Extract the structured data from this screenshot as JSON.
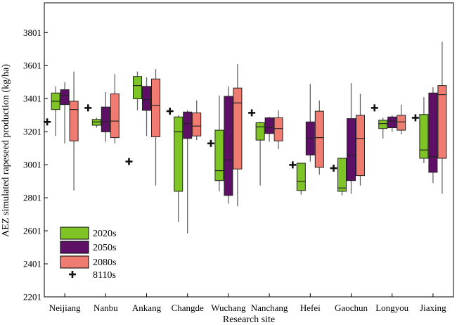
{
  "chart_data": {
    "type": "box",
    "xlabel": "Research site",
    "ylabel": "AEZ simulated rapeseed production (kg/ha)",
    "ylim": [
      2201,
      3981
    ],
    "yticks": [
      2201,
      2401,
      2601,
      2801,
      3001,
      3201,
      3401,
      3601,
      3801
    ],
    "grid": false,
    "legend_position": "bottom-left",
    "categories": [
      "Neijiang",
      "Nanbu",
      "Ankang",
      "Changde",
      "Wuchang",
      "Nanchang",
      "Hefei",
      "Gaochun",
      "Longyou",
      "Jiaxing"
    ],
    "series": [
      {
        "name": "2020s",
        "color": "#7dc424",
        "boxes": [
          {
            "min": 3175,
            "q1": 3335,
            "median": 3385,
            "q3": 3435,
            "max": 3475
          },
          {
            "min": 3225,
            "q1": 3240,
            "median": 3260,
            "q3": 3275,
            "max": 3285
          },
          {
            "min": 3330,
            "q1": 3400,
            "median": 3480,
            "q3": 3535,
            "max": 3565
          },
          {
            "min": 2655,
            "q1": 2840,
            "median": 3200,
            "q3": 3290,
            "max": 3300
          },
          {
            "min": 2840,
            "q1": 2905,
            "median": 2965,
            "q3": 3210,
            "max": 3420
          },
          {
            "min": 2875,
            "q1": 3150,
            "median": 3230,
            "q3": 3255,
            "max": 3260
          },
          {
            "min": 2820,
            "q1": 2845,
            "median": 2900,
            "q3": 3010,
            "max": 3010
          },
          {
            "min": 2815,
            "q1": 2840,
            "median": 2860,
            "q3": 3040,
            "max": 3040
          },
          {
            "min": 3160,
            "q1": 3220,
            "median": 3250,
            "q3": 3270,
            "max": 3285
          },
          {
            "min": 3010,
            "q1": 3040,
            "median": 3090,
            "q3": 3305,
            "max": 3410
          }
        ]
      },
      {
        "name": "2050s",
        "color": "#5e0f66",
        "boxes": [
          {
            "min": 3130,
            "q1": 3365,
            "median": 3420,
            "q3": 3455,
            "max": 3500
          },
          {
            "min": 3140,
            "q1": 3200,
            "median": 3260,
            "q3": 3350,
            "max": 3440
          },
          {
            "min": 3175,
            "q1": 3330,
            "median": 3395,
            "q3": 3475,
            "max": 3530
          },
          {
            "min": 2585,
            "q1": 3160,
            "median": 3250,
            "q3": 3320,
            "max": 3330
          },
          {
            "min": 2765,
            "q1": 2815,
            "median": 3030,
            "q3": 3415,
            "max": 3475
          },
          {
            "min": 3140,
            "q1": 3190,
            "median": 3225,
            "q3": 3285,
            "max": 3290
          },
          {
            "min": 3020,
            "q1": 3060,
            "median": 3160,
            "q3": 3260,
            "max": 3490
          },
          {
            "min": 2825,
            "q1": 2905,
            "median": 3060,
            "q3": 3280,
            "max": 3495
          },
          {
            "min": 3200,
            "q1": 3225,
            "median": 3265,
            "q3": 3290,
            "max": 3300
          },
          {
            "min": 2890,
            "q1": 2955,
            "median": 3050,
            "q3": 3435,
            "max": 3470
          }
        ]
      },
      {
        "name": "2080s",
        "color": "#f07b70",
        "boxes": [
          {
            "min": 2845,
            "q1": 3145,
            "median": 3335,
            "q3": 3385,
            "max": 3565
          },
          {
            "min": 3130,
            "q1": 3165,
            "median": 3265,
            "q3": 3430,
            "max": 3550
          },
          {
            "min": 2875,
            "q1": 3170,
            "median": 3360,
            "q3": 3520,
            "max": 3580
          },
          {
            "min": 3150,
            "q1": 3175,
            "median": 3235,
            "q3": 3315,
            "max": 3390
          },
          {
            "min": 2750,
            "q1": 2975,
            "median": 3375,
            "q3": 3465,
            "max": 3610
          },
          {
            "min": 3095,
            "q1": 3145,
            "median": 3220,
            "q3": 3285,
            "max": 3330
          },
          {
            "min": 2940,
            "q1": 2985,
            "median": 3165,
            "q3": 3325,
            "max": 3390
          },
          {
            "min": 2875,
            "q1": 2935,
            "median": 3160,
            "q3": 3300,
            "max": 3430
          },
          {
            "min": 3185,
            "q1": 3210,
            "median": 3260,
            "q3": 3300,
            "max": 3365
          },
          {
            "min": 2825,
            "q1": 3040,
            "median": 3425,
            "q3": 3480,
            "max": 3745
          }
        ]
      },
      {
        "name": "8110s",
        "marker": "+",
        "color": "#111111",
        "values": [
          3260,
          3345,
          3020,
          3325,
          3130,
          3315,
          3000,
          2980,
          3345,
          3285
        ]
      }
    ]
  }
}
